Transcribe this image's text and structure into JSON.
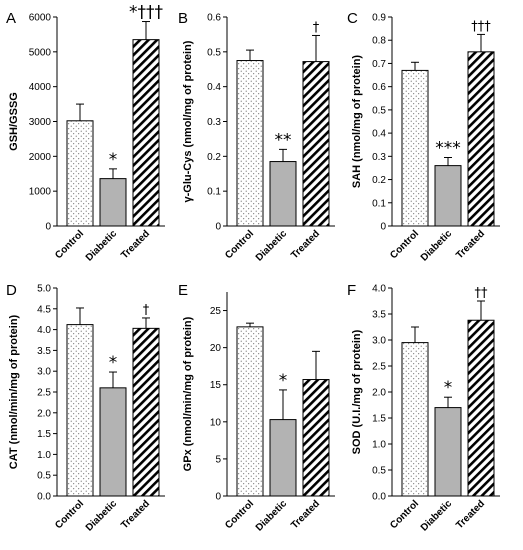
{
  "colors": {
    "control": "#ffffff",
    "diabetic": "#b3b3b3",
    "treated": "#ffffff",
    "stroke": "#000000"
  },
  "chart_data": [
    {
      "type": "bar",
      "panel": "A",
      "ylabel": "GSH/GSSG",
      "categories": [
        "Control",
        "Diabetic",
        "Treated"
      ],
      "values": [
        3020,
        1360,
        5350
      ],
      "errors": [
        480,
        280,
        520
      ],
      "annotations": [
        "",
        "*",
        "*†††"
      ],
      "ylim": [
        0,
        6000
      ],
      "ticks": [
        "0",
        "1000",
        "2000",
        "3000",
        "4000",
        "5000",
        "6000"
      ],
      "tick_values": [
        0,
        1000,
        2000,
        3000,
        4000,
        5000,
        6000
      ]
    },
    {
      "type": "bar",
      "panel": "B",
      "ylabel": "γ-Glu-Cys (nmol/mg of protein)",
      "categories": [
        "Control",
        "Diabetic",
        "Treated"
      ],
      "values": [
        0.475,
        0.185,
        0.472
      ],
      "errors": [
        0.03,
        0.035,
        0.075
      ],
      "annotations": [
        "",
        "**",
        "†"
      ],
      "ylim": [
        0,
        0.6
      ],
      "ticks": [
        "0",
        "0.1",
        "0.2",
        "0.3",
        "0.4",
        "0.5",
        "0.6"
      ],
      "tick_values": [
        0,
        0.1,
        0.2,
        0.3,
        0.4,
        0.5,
        0.6
      ]
    },
    {
      "type": "bar",
      "panel": "C",
      "ylabel": "SAH (nmol/mg of protein)",
      "categories": [
        "Control",
        "Diabetic",
        "Treated"
      ],
      "values": [
        0.67,
        0.26,
        0.75
      ],
      "errors": [
        0.035,
        0.035,
        0.075
      ],
      "annotations": [
        "",
        "***",
        "†††"
      ],
      "ylim": [
        0,
        0.9
      ],
      "ticks": [
        "0",
        "0.1",
        "0.2",
        "0.3",
        "0.4",
        "0.5",
        "0.6",
        "0.7",
        "0.8",
        "0.9"
      ],
      "tick_values": [
        0,
        0.1,
        0.2,
        0.3,
        0.4,
        0.5,
        0.6,
        0.7,
        0.8,
        0.9
      ]
    },
    {
      "type": "bar",
      "panel": "D",
      "ylabel": "CAT (nmol/min/mg of protein)",
      "categories": [
        "Control",
        "Diabetic",
        "Treated"
      ],
      "values": [
        4.12,
        2.6,
        4.03
      ],
      "errors": [
        0.4,
        0.38,
        0.25
      ],
      "annotations": [
        "",
        "*",
        "†"
      ],
      "ylim": [
        0,
        5.0
      ],
      "ticks": [
        "0.0",
        "0.5",
        "1.0",
        "1.5",
        "2.0",
        "2.5",
        "3.0",
        "3.5",
        "4.0",
        "4.5",
        "5.0"
      ],
      "tick_values": [
        0,
        0.5,
        1.0,
        1.5,
        2.0,
        2.5,
        3.0,
        3.5,
        4.0,
        4.5,
        5.0
      ]
    },
    {
      "type": "bar",
      "panel": "E",
      "ylabel": "GPx (nmol/min/mg of protein)",
      "categories": [
        "Control",
        "Diabetic",
        "Treated"
      ],
      "values": [
        22.8,
        10.3,
        15.7
      ],
      "errors": [
        0.5,
        4.0,
        3.8
      ],
      "annotations": [
        "",
        "*",
        ""
      ],
      "ylim": [
        0,
        27.5
      ],
      "ticks": [
        "0",
        "5",
        "10",
        "15",
        "20",
        "25"
      ],
      "tick_values": [
        0,
        5,
        10,
        15,
        20,
        25
      ]
    },
    {
      "type": "bar",
      "panel": "F",
      "ylabel": "SOD (U.I./mg of protein)",
      "categories": [
        "Control",
        "Diabetic",
        "Treated"
      ],
      "values": [
        2.95,
        1.7,
        3.38
      ],
      "errors": [
        0.3,
        0.2,
        0.37
      ],
      "annotations": [
        "",
        "*",
        "††"
      ],
      "ylim": [
        0,
        4.0
      ],
      "ticks": [
        "0.0",
        "0.5",
        "1.0",
        "1.5",
        "2.0",
        "2.5",
        "3.0",
        "3.5",
        "4.0"
      ],
      "tick_values": [
        0,
        0.5,
        1.0,
        1.5,
        2.0,
        2.5,
        3.0,
        3.5,
        4.0
      ]
    }
  ]
}
